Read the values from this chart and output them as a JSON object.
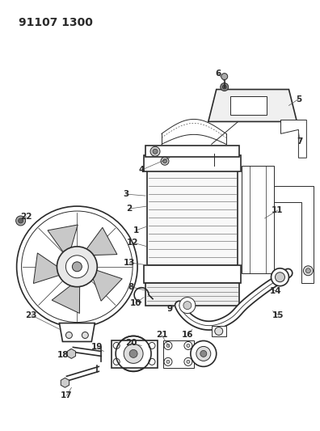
{
  "title": "91107 1300",
  "bg_color": "#ffffff",
  "line_color": "#2a2a2a",
  "title_fontsize": 10,
  "label_fontsize": 7.5,
  "fig_w": 3.96,
  "fig_h": 5.33,
  "dpi": 100
}
